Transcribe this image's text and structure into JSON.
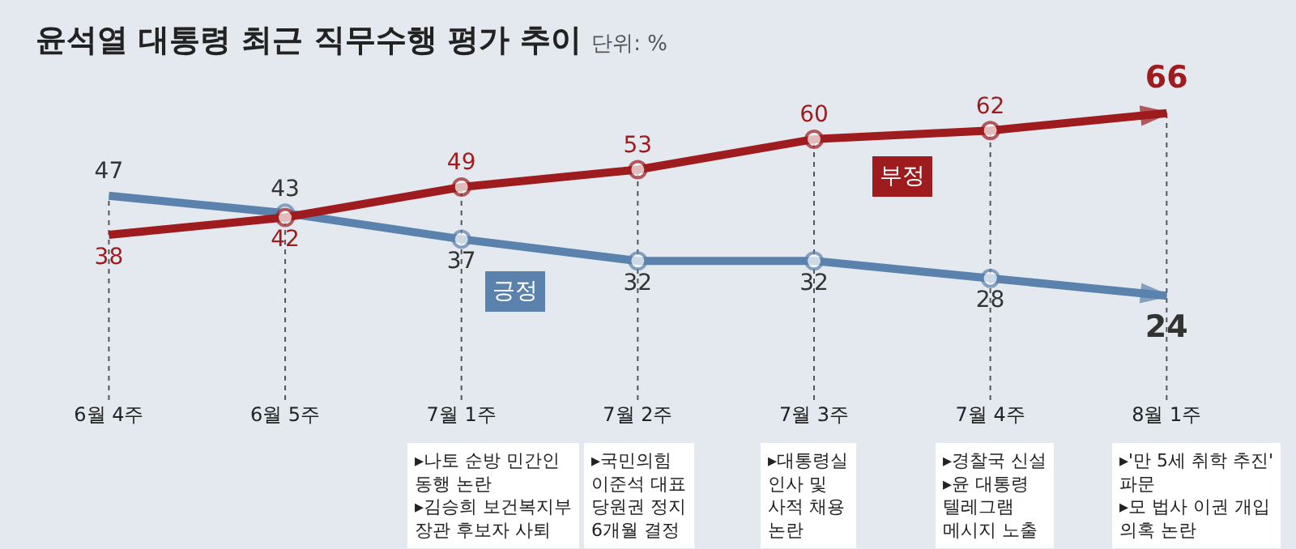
{
  "chart_data": {
    "type": "line",
    "title": "윤석열 대통령 최근 직무수행 평가 추이",
    "subtitle": "단위: %",
    "categories": [
      "6월 4주",
      "6월 5주",
      "7월 1주",
      "7월 2주",
      "7월 3주",
      "7월 4주",
      "8월 1주"
    ],
    "series": [
      {
        "name": "긍정",
        "color": "#5b82ad",
        "values": [
          47,
          43,
          37,
          32,
          32,
          28,
          24
        ]
      },
      {
        "name": "부정",
        "color": "#9e1b1e",
        "values": [
          38,
          42,
          49,
          53,
          60,
          62,
          66
        ]
      }
    ],
    "data_labels": true,
    "legend": false,
    "grid": "x",
    "marker": "circle",
    "line_style": "solid",
    "tick_labels": "x",
    "annotations": [
      "▸나토 순방 민간인\n동행 논란\n▸김승희 보건복지부\n장관 후보자 사퇴",
      "▸국민의힘\n이준석 대표\n당원권 정지\n6개월 결정",
      "▸대통령실\n인사 및\n사적 채용\n논란",
      "▸경찰국 신설\n▸윤 대통령\n텔레그램\n메시지 노출",
      "▸'만 5세 취학 추진'\n파문\n▸모 법사 이권 개입\n의혹 논란"
    ]
  }
}
